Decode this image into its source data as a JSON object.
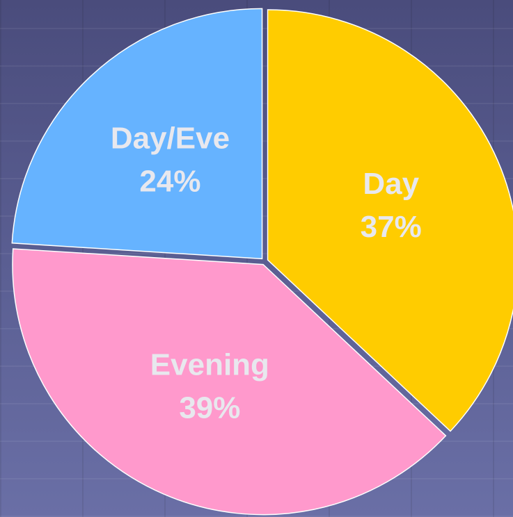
{
  "chart_data": {
    "type": "pie",
    "categories": [
      "Day",
      "Evening",
      "Day/Eve"
    ],
    "values": [
      37,
      39,
      24
    ],
    "value_labels": [
      "37%",
      "39%",
      "24%"
    ],
    "colors": [
      "#ffcc00",
      "#ff99cc",
      "#66b3ff"
    ]
  }
}
